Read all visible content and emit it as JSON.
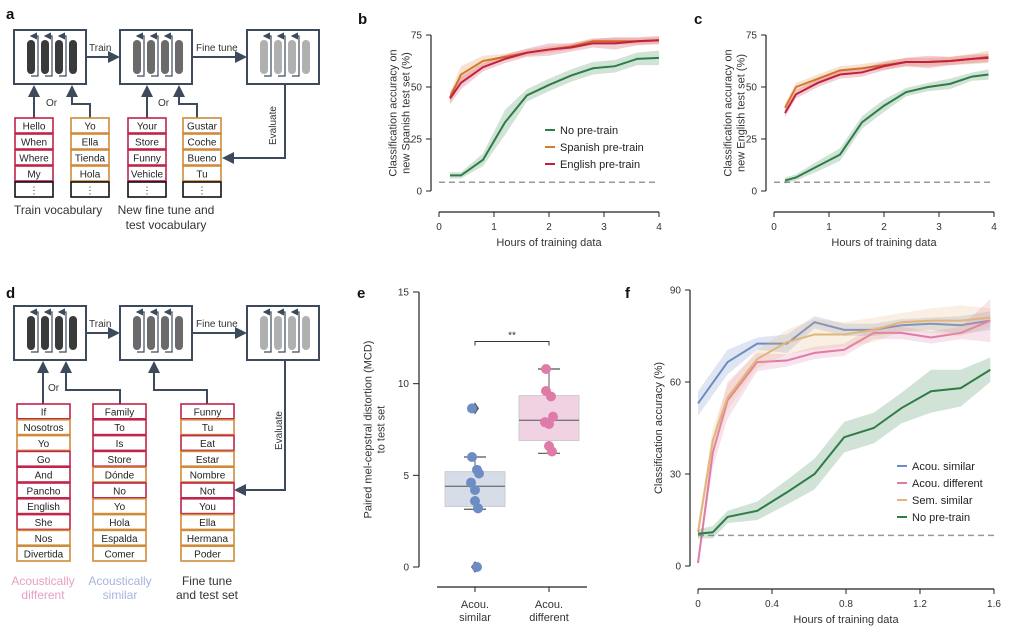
{
  "panels": {
    "a": {
      "letter": "a",
      "arrow_labels": {
        "train": "Train",
        "fine_tune": "Fine tune",
        "evaluate": "Evaluate",
        "or1": "Or",
        "or2": "Or"
      },
      "columns": [
        {
          "words": [
            "Hello",
            "When",
            "Where",
            "My",
            "⋮"
          ],
          "colors": [
            "red",
            "red",
            "red",
            "red",
            "black"
          ]
        },
        {
          "words": [
            "Yo",
            "Ella",
            "Tienda",
            "Hola",
            "⋮"
          ],
          "colors": [
            "orange",
            "orange",
            "orange",
            "orange",
            "black"
          ]
        },
        {
          "words": [
            "Your",
            "Store",
            "Funny",
            "Vehicle",
            "⋮"
          ],
          "colors": [
            "red",
            "red",
            "red",
            "red",
            "black"
          ]
        },
        {
          "words": [
            "Gustar",
            "Coche",
            "Bueno",
            "Tu",
            "⋮"
          ],
          "colors": [
            "orange",
            "orange",
            "orange",
            "orange",
            "black"
          ]
        }
      ],
      "captions": [
        "Train vocabulary",
        "New fine tune and",
        "test vocabulary"
      ]
    },
    "d": {
      "letter": "d",
      "arrow_labels": {
        "train": "Train",
        "fine_tune": "Fine tune",
        "evaluate": "Evaluate",
        "or": "Or"
      },
      "columns": [
        {
          "words": [
            "If",
            "Nosotros",
            "Yo",
            "Go",
            "And",
            "Pancho",
            "English",
            "She",
            "Nos",
            "Divertida"
          ],
          "colors": [
            "red",
            "orange",
            "orange",
            "red",
            "red",
            "red",
            "red",
            "red",
            "orange",
            "orange"
          ]
        },
        {
          "words": [
            "Family",
            "To",
            "Is",
            "Store",
            "Dónde",
            "No",
            "Yo",
            "Hola",
            "Espalda",
            "Comer"
          ],
          "colors": [
            "red",
            "red",
            "red",
            "red",
            "orange",
            "red",
            "orange",
            "orange",
            "orange",
            "orange"
          ]
        },
        {
          "words": [
            "Funny",
            "Tu",
            "Eat",
            "Estar",
            "Nombre",
            "Not",
            "You",
            "Ella",
            "Hermana",
            "Poder"
          ],
          "colors": [
            "red",
            "orange",
            "red",
            "orange",
            "orange",
            "red",
            "red",
            "orange",
            "orange",
            "orange"
          ]
        }
      ],
      "captions": {
        "acoustically_different": [
          "Acoustically",
          "different"
        ],
        "acoustically_similar": [
          "Acoustically",
          "similar"
        ],
        "fine_tune": [
          "Fine tune",
          "and test set"
        ]
      }
    }
  },
  "colors": {
    "red": "#c0254a",
    "orange": "#d08a3a",
    "green": "#2e7d45",
    "spanish": "#d47a2a",
    "english": "#c41f3e",
    "blue": "#6d8cc4",
    "pink": "#e07aa8",
    "tan": "#e2b57a",
    "gray_dash": "#999999",
    "box_dark": "#3a3a3a",
    "box_mid": "#6a6a6a",
    "box_light": "#b0b0b0",
    "frame": "#3c4a5c"
  },
  "chart_data": [
    {
      "id": "b",
      "letter": "b",
      "type": "line",
      "title": "",
      "xlabel": "Hours of training data",
      "ylabel": [
        "Classification accuracy on",
        "new Spanish test set (%)"
      ],
      "xlim": [
        0,
        4
      ],
      "ylim": [
        0,
        75
      ],
      "xticks": [
        0,
        1,
        2,
        3,
        4
      ],
      "yticks": [
        0,
        25,
        50,
        75
      ],
      "chance": 4.2,
      "legend": {
        "position": "center-right",
        "entries": [
          "No pre-train",
          "Spanish pre-train",
          "English pre-train"
        ]
      },
      "x": [
        0.2,
        0.4,
        0.8,
        1.2,
        1.6,
        2.0,
        2.4,
        2.8,
        3.2,
        3.6,
        4.0
      ],
      "series": [
        {
          "name": "No pre-train",
          "color_key": "green",
          "values": [
            7.5,
            7.5,
            15,
            33,
            46,
            51,
            55.5,
            59,
            60,
            63.5,
            64
          ],
          "spread": [
            1.5,
            1.5,
            3,
            6,
            3,
            3,
            3,
            3,
            3,
            3,
            3.5
          ]
        },
        {
          "name": "Spanish pre-train",
          "color_key": "spanish",
          "values": [
            45,
            56,
            62.5,
            64.5,
            66.5,
            68,
            69.5,
            72,
            72,
            72,
            72.5
          ],
          "spread": [
            2.5,
            4,
            2.5,
            1.5,
            1.5,
            1.5,
            1.5,
            1.5,
            1.5,
            1.5,
            1.5
          ]
        },
        {
          "name": "English pre-train",
          "color_key": "english",
          "values": [
            44.5,
            52,
            59.5,
            63.5,
            66.5,
            68,
            69,
            71,
            71,
            72,
            72.5
          ],
          "spread": [
            3,
            3,
            2,
            2,
            2,
            3,
            2,
            2,
            3,
            2,
            2
          ]
        }
      ]
    },
    {
      "id": "c",
      "letter": "c",
      "type": "line",
      "title": "",
      "xlabel": "Hours of training data",
      "ylabel": [
        "Classification accuracy on",
        "new English test set (%)"
      ],
      "xlim": [
        0,
        4
      ],
      "ylim": [
        0,
        75
      ],
      "xticks": [
        0,
        1,
        2,
        3,
        4
      ],
      "yticks": [
        0,
        25,
        50,
        75
      ],
      "chance": 4.2,
      "legend": null,
      "x": [
        0.2,
        0.4,
        0.8,
        1.2,
        1.6,
        2.0,
        2.4,
        2.8,
        3.2,
        3.6,
        3.9
      ],
      "series": [
        {
          "name": "No pre-train",
          "color_key": "green",
          "values": [
            5,
            6.5,
            12,
            17.5,
            33,
            41,
            47.5,
            50,
            51.5,
            55,
            56
          ],
          "spread": [
            1.5,
            1.5,
            2.5,
            3,
            3,
            3,
            2,
            2,
            2.5,
            2,
            2.5
          ]
        },
        {
          "name": "Spanish pre-train",
          "color_key": "spanish",
          "values": [
            40,
            50,
            54,
            58,
            59,
            60.5,
            62,
            62,
            62.5,
            63.5,
            64.5
          ],
          "spread": [
            2,
            2,
            2,
            2,
            2,
            2,
            2,
            2,
            2,
            2.5,
            3
          ]
        },
        {
          "name": "English pre-train",
          "color_key": "english",
          "values": [
            37.5,
            46.5,
            52,
            56,
            57,
            60,
            62,
            62,
            62.5,
            63.5,
            64
          ],
          "spread": [
            2,
            2,
            2,
            2,
            2,
            2,
            2,
            3,
            2,
            2,
            2
          ]
        }
      ]
    },
    {
      "id": "e",
      "letter": "e",
      "type": "box",
      "xlabel": "",
      "ylabel": [
        "Paired mel-cepstral distortion (MCD)",
        "to test set"
      ],
      "ylim": [
        0,
        15
      ],
      "yticks": [
        0,
        5,
        10,
        15
      ],
      "categories": [
        [
          "Acou.",
          "similar"
        ],
        [
          "Acou.",
          "different"
        ]
      ],
      "significance": "**",
      "groups": [
        {
          "name": "Acou. similar",
          "color_key": "blue",
          "q1": 3.3,
          "median": 4.4,
          "q3": 5.2,
          "whisker_low": 3.15,
          "whisker_high": 6.0,
          "outliers": [
            8.65,
            0.0
          ],
          "points": [
            8.65,
            6.0,
            5.3,
            5.1,
            4.6,
            4.2,
            3.6,
            3.2,
            0.0
          ]
        },
        {
          "name": "Acou. different",
          "color_key": "pink",
          "q1": 6.9,
          "median": 8.0,
          "q3": 9.35,
          "whisker_low": 6.2,
          "whisker_high": 10.8,
          "outliers": [],
          "points": [
            10.8,
            9.6,
            9.3,
            8.2,
            7.9,
            7.8,
            6.6,
            6.3
          ]
        }
      ]
    },
    {
      "id": "f",
      "letter": "f",
      "type": "line",
      "xlabel": "Hours of training data",
      "ylabel": [
        "Classification accuracy (%)"
      ],
      "xlim": [
        0,
        1.6
      ],
      "ylim": [
        0,
        90
      ],
      "xticks": [
        0,
        0.4,
        0.8,
        1.2,
        1.6
      ],
      "yticks": [
        0,
        30,
        60,
        90
      ],
      "chance": 10,
      "legend": {
        "position": "lower-right",
        "entries": [
          "Acou. similar",
          "Acou. different",
          "Sem. similar",
          "No pre-train"
        ]
      },
      "series": [
        {
          "name": "Acou. similar",
          "color_key": "blue",
          "x": [
            0,
            0.16,
            0.32,
            0.48,
            0.63,
            0.79,
            0.95,
            1.1,
            1.26,
            1.42,
            1.58
          ],
          "values": [
            53,
            66.5,
            72.5,
            72.5,
            79.5,
            77,
            77,
            78.5,
            79,
            78.5,
            80
          ],
          "spread": [
            4,
            4,
            2,
            3,
            2,
            2,
            2,
            2,
            2,
            3,
            3
          ]
        },
        {
          "name": "Acou. different",
          "color_key": "pink",
          "x": [
            0,
            0.08,
            0.16,
            0.32,
            0.48,
            0.63,
            0.79,
            0.95,
            1.1,
            1.26,
            1.42,
            1.58
          ],
          "values": [
            1,
            37,
            54,
            66.5,
            67,
            69.5,
            70.5,
            76,
            76,
            74.5,
            76,
            80
          ],
          "spread": [
            1,
            5,
            6,
            3,
            2,
            2,
            2,
            2,
            2,
            2,
            2,
            7
          ]
        },
        {
          "name": "Sem. similar",
          "color_key": "tan",
          "x": [
            0,
            0.08,
            0.16,
            0.32,
            0.48,
            0.63,
            0.79,
            0.95,
            1.1,
            1.26,
            1.42,
            1.58
          ],
          "values": [
            11,
            41,
            55,
            67.5,
            73,
            75.5,
            75.5,
            77,
            79.5,
            80,
            80,
            81
          ],
          "spread": [
            3,
            4,
            4,
            3,
            4,
            5,
            4,
            4,
            3,
            4,
            5,
            3
          ]
        },
        {
          "name": "No pre-train",
          "color_key": "green",
          "x": [
            0,
            0.08,
            0.16,
            0.32,
            0.48,
            0.63,
            0.79,
            0.95,
            1.1,
            1.26,
            1.42,
            1.58
          ],
          "values": [
            10.5,
            11,
            16,
            18,
            24,
            30,
            42,
            45,
            51.5,
            57,
            58,
            64
          ],
          "spread": [
            1.5,
            2,
            2,
            3,
            4,
            5,
            5,
            5,
            5,
            7,
            6,
            4
          ]
        }
      ]
    }
  ]
}
